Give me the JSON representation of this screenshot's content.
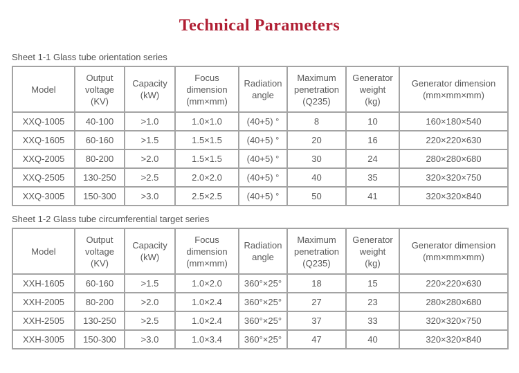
{
  "title": "Technical Parameters",
  "colors": {
    "title": "#b01e33",
    "table_text": "#595959",
    "table_border": "#a3a3a3"
  },
  "tables": [
    {
      "caption": "Sheet 1-1 Glass tube orientation series",
      "headers": [
        {
          "lines": [
            "Model"
          ]
        },
        {
          "lines": [
            "Output",
            "voltage",
            "(KV)"
          ]
        },
        {
          "lines": [
            "Capacity",
            "(kW)"
          ]
        },
        {
          "lines": [
            "Focus",
            "dimension",
            "(mm×mm)"
          ]
        },
        {
          "lines": [
            "Radiation",
            "angle"
          ]
        },
        {
          "lines": [
            "Maximum",
            "penetration",
            "(Q235)"
          ]
        },
        {
          "lines": [
            "Generator",
            "weight",
            "(kg)"
          ]
        },
        {
          "lines": [
            "Generator dimension",
            "(mm×mm×mm)"
          ]
        }
      ],
      "rows": [
        [
          "XXQ-1005",
          "40-100",
          ">1.0",
          "1.0×1.0",
          "(40+5) °",
          "8",
          "10",
          "160×180×540"
        ],
        [
          "XXQ-1605",
          "60-160",
          ">1.5",
          "1.5×1.5",
          "(40+5) °",
          "20",
          "16",
          "220×220×630"
        ],
        [
          "XXQ-2005",
          "80-200",
          ">2.0",
          "1.5×1.5",
          "(40+5) °",
          "30",
          "24",
          "280×280×680"
        ],
        [
          "XXQ-2505",
          "130-250",
          ">2.5",
          "2.0×2.0",
          "(40+5) °",
          "40",
          "35",
          "320×320×750"
        ],
        [
          "XXQ-3005",
          "150-300",
          ">3.0",
          "2.5×2.5",
          "(40+5) °",
          "50",
          "41",
          "320×320×840"
        ]
      ]
    },
    {
      "caption": "Sheet 1-2 Glass tube circumferential target series",
      "headers": [
        {
          "lines": [
            "Model"
          ]
        },
        {
          "lines": [
            "Output",
            "voltage",
            "(KV)"
          ]
        },
        {
          "lines": [
            "Capacity",
            "(kW)"
          ]
        },
        {
          "lines": [
            "Focus",
            "dimension",
            "(mm×mm)"
          ]
        },
        {
          "lines": [
            "Radiation",
            "angle"
          ]
        },
        {
          "lines": [
            "Maximum",
            "penetration",
            "(Q235)"
          ]
        },
        {
          "lines": [
            "Generator",
            "weight",
            "(kg)"
          ]
        },
        {
          "lines": [
            "Generator dimension",
            "(mm×mm×mm)"
          ]
        }
      ],
      "rows": [
        [
          "XXH-1605",
          "60-160",
          ">1.5",
          "1.0×2.0",
          "360°×25°",
          "18",
          "15",
          "220×220×630"
        ],
        [
          "XXH-2005",
          "80-200",
          ">2.0",
          "1.0×2.4",
          "360°×25°",
          "27",
          "23",
          "280×280×680"
        ],
        [
          "XXH-2505",
          "130-250",
          ">2.5",
          "1.0×2.4",
          "360°×25°",
          "37",
          "33",
          "320×320×750"
        ],
        [
          "XXH-3005",
          "150-300",
          ">3.0",
          "1.0×3.4",
          "360°×25°",
          "47",
          "40",
          "320×320×840"
        ]
      ]
    }
  ]
}
